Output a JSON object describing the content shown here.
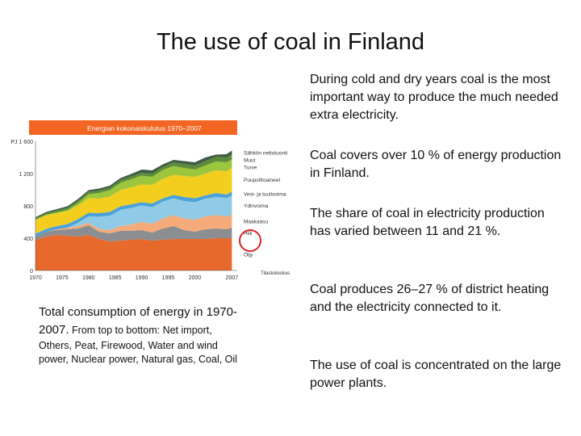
{
  "slide": {
    "title": "The use of coal in Finland",
    "paragraphs": [
      "During cold and dry years coal is the most important way to produce the much needed extra electricity.",
      "Coal  covers over 10 % of energy production in Finland.",
      "The share of coal in electricity production  has varied between 11 and 21 %.",
      "Coal produces 26–27 % of district heating and the electricity connected to it.",
      "The use of coal is concentrated on the large power plants."
    ],
    "caption_bold": "Total consumption of energy in 1970-2007.",
    "caption_rest": "From top to bottom: Net import, Others, Peat, Firewood, Water and wind power, Nuclear power, Natural gas, Coal, Oil"
  },
  "colors": {
    "header_band": "#f26522",
    "highlight_circle": "#d9262b"
  },
  "chart_data": {
    "type": "area",
    "stacked": true,
    "title": "Energian kokonaiskulutus 1970–2007",
    "ylabel": "PJ",
    "ylim": [
      0,
      1600
    ],
    "yticks": [
      0,
      400,
      800,
      1200,
      1600
    ],
    "ytick_labels": [
      "0",
      "400",
      "800",
      "1 200",
      "PJ 1 600"
    ],
    "xlim": [
      1970,
      2008
    ],
    "xticks": [
      1970,
      1975,
      1980,
      1985,
      1990,
      1995,
      2000,
      2007
    ],
    "grid": false,
    "legend_position": "right",
    "x": [
      1970,
      1972,
      1974,
      1976,
      1978,
      1980,
      1982,
      1984,
      1986,
      1988,
      1990,
      1992,
      1994,
      1996,
      1998,
      2000,
      2002,
      2004,
      2006,
      2007
    ],
    "series": [
      {
        "name": "Öljy",
        "color": "#e8692c",
        "values": [
          380,
          420,
          440,
          430,
          420,
          440,
          390,
          360,
          370,
          380,
          390,
          370,
          380,
          390,
          390,
          390,
          390,
          400,
          400,
          400
        ]
      },
      {
        "name": "Hiili",
        "color": "#8b8d90",
        "values": [
          40,
          60,
          60,
          80,
          100,
          120,
          90,
          100,
          120,
          110,
          110,
          100,
          140,
          160,
          110,
          90,
          120,
          120,
          110,
          130
        ]
      },
      {
        "name": "Maakaasu",
        "color": "#f5aa7a",
        "values": [
          0,
          0,
          10,
          20,
          30,
          30,
          35,
          40,
          60,
          80,
          100,
          110,
          125,
          135,
          145,
          150,
          160,
          165,
          160,
          160
        ]
      },
      {
        "name": "Ydinvoima",
        "color": "#8fcbe6",
        "values": [
          0,
          0,
          0,
          0,
          40,
          80,
          150,
          180,
          200,
          205,
          205,
          205,
          210,
          210,
          215,
          215,
          220,
          225,
          230,
          235
        ]
      },
      {
        "name": "Vesi- ja tuulivoima",
        "color": "#4aa2d8",
        "values": [
          35,
          35,
          40,
          45,
          45,
          45,
          45,
          45,
          45,
          45,
          40,
          45,
          40,
          40,
          50,
          50,
          40,
          50,
          40,
          50
        ]
      },
      {
        "name": "Puupolttoaineet",
        "color": "#f4ce1e",
        "values": [
          170,
          170,
          160,
          160,
          170,
          180,
          180,
          190,
          200,
          210,
          220,
          230,
          240,
          250,
          260,
          265,
          270,
          280,
          290,
          300
        ]
      },
      {
        "name": "Turve",
        "color": "#9cc63d",
        "values": [
          5,
          5,
          10,
          15,
          30,
          50,
          70,
          80,
          90,
          100,
          110,
          100,
          110,
          110,
          100,
          90,
          100,
          110,
          110,
          100
        ]
      },
      {
        "name": "Muut",
        "color": "#5c8c3a",
        "values": [
          20,
          20,
          25,
          25,
          30,
          30,
          30,
          30,
          35,
          35,
          35,
          40,
          40,
          45,
          50,
          50,
          55,
          60,
          60,
          60
        ]
      },
      {
        "name": "Sähkön nettotuonti",
        "color": "#3f5b46",
        "values": [
          10,
          15,
          15,
          20,
          20,
          20,
          25,
          25,
          25,
          30,
          40,
          40,
          30,
          30,
          35,
          40,
          45,
          25,
          40,
          50
        ]
      }
    ],
    "source": "Tilastokeskus"
  }
}
